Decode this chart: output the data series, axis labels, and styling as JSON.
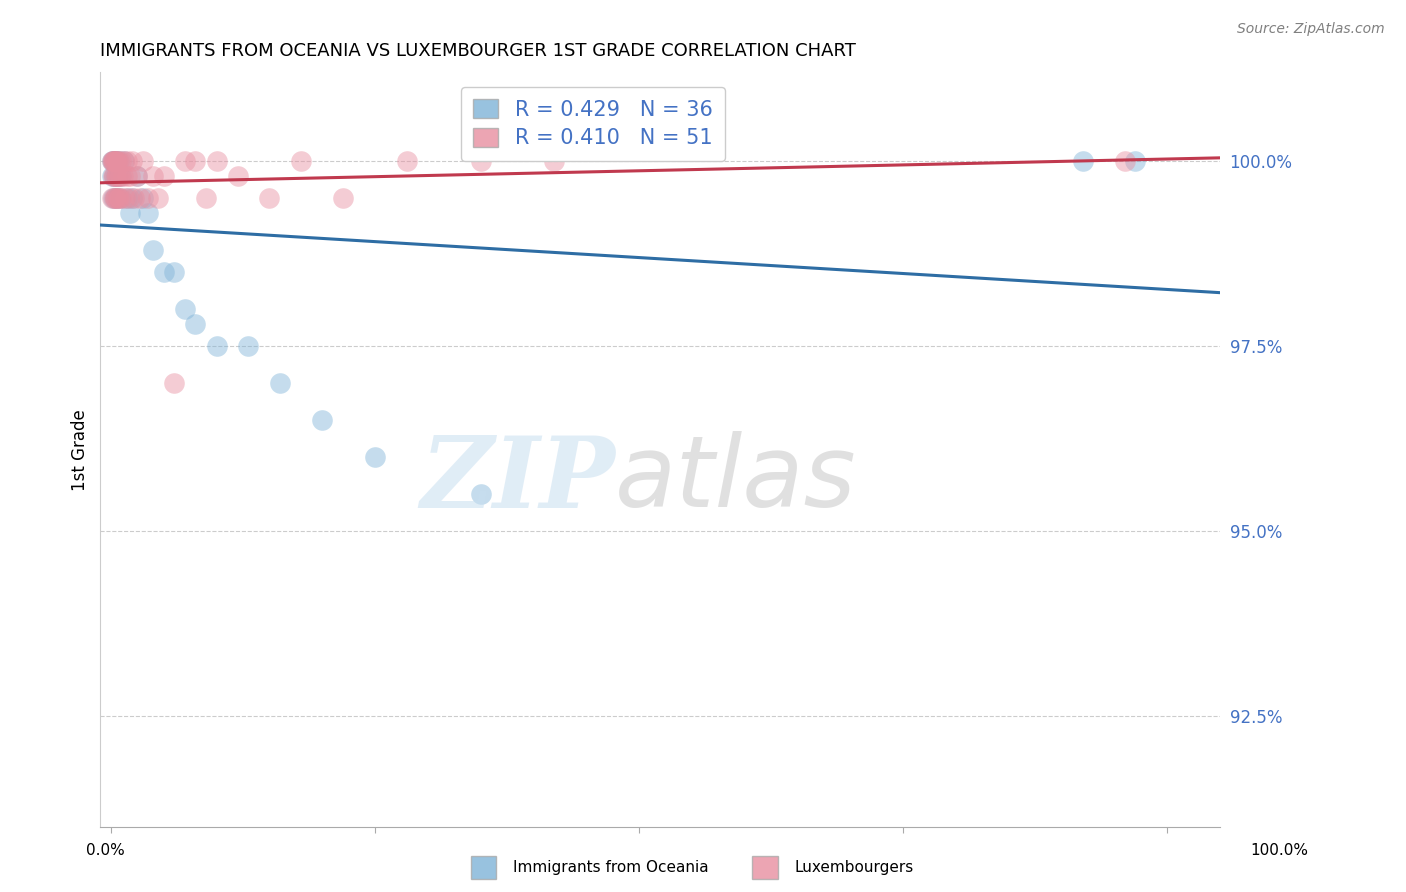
{
  "title": "IMMIGRANTS FROM OCEANIA VS LUXEMBOURGER 1ST GRADE CORRELATION CHART",
  "source_text": "Source: ZipAtlas.com",
  "ylabel": "1st Grade",
  "legend_blue_label": "Immigrants from Oceania",
  "legend_pink_label": "Luxembourgers",
  "R_blue": 0.429,
  "N_blue": 36,
  "R_pink": 0.41,
  "N_pink": 51,
  "blue_color": "#7fb3d8",
  "pink_color": "#e88fa0",
  "blue_line_color": "#2e6da4",
  "pink_line_color": "#c0394e",
  "ytick_labels": [
    "92.5%",
    "95.0%",
    "97.5%",
    "100.0%"
  ],
  "ytick_values": [
    92.5,
    95.0,
    97.5,
    100.0
  ],
  "ylim": [
    91.0,
    101.2
  ],
  "xlim": [
    -0.01,
    1.05
  ],
  "blue_points_x": [
    0.001,
    0.001,
    0.002,
    0.002,
    0.003,
    0.003,
    0.004,
    0.004,
    0.005,
    0.005,
    0.006,
    0.006,
    0.007,
    0.008,
    0.009,
    0.01,
    0.012,
    0.015,
    0.018,
    0.02,
    0.025,
    0.03,
    0.035,
    0.04,
    0.05,
    0.06,
    0.07,
    0.08,
    0.1,
    0.13,
    0.16,
    0.2,
    0.25,
    0.35,
    0.92,
    0.97
  ],
  "blue_points_y": [
    99.8,
    100.0,
    99.5,
    100.0,
    100.0,
    99.8,
    100.0,
    99.5,
    100.0,
    99.8,
    99.5,
    100.0,
    99.8,
    100.0,
    99.5,
    99.8,
    100.0,
    99.5,
    99.3,
    99.5,
    99.8,
    99.5,
    99.3,
    98.8,
    98.5,
    98.5,
    98.0,
    97.8,
    97.5,
    97.5,
    97.0,
    96.5,
    96.0,
    95.5,
    100.0,
    100.0
  ],
  "pink_points_x": [
    0.001,
    0.001,
    0.002,
    0.002,
    0.002,
    0.003,
    0.003,
    0.003,
    0.004,
    0.004,
    0.005,
    0.005,
    0.005,
    0.006,
    0.006,
    0.007,
    0.007,
    0.008,
    0.008,
    0.009,
    0.01,
    0.01,
    0.011,
    0.012,
    0.013,
    0.015,
    0.015,
    0.017,
    0.018,
    0.02,
    0.022,
    0.025,
    0.028,
    0.03,
    0.035,
    0.04,
    0.045,
    0.05,
    0.06,
    0.07,
    0.08,
    0.09,
    0.1,
    0.12,
    0.15,
    0.18,
    0.22,
    0.28,
    0.35,
    0.42,
    0.96
  ],
  "pink_points_y": [
    99.5,
    100.0,
    99.8,
    100.0,
    100.0,
    99.5,
    100.0,
    99.8,
    100.0,
    99.5,
    99.8,
    100.0,
    99.5,
    99.8,
    100.0,
    99.5,
    100.0,
    99.8,
    99.5,
    99.8,
    100.0,
    99.5,
    99.8,
    100.0,
    99.5,
    99.8,
    100.0,
    99.5,
    99.8,
    100.0,
    99.5,
    99.8,
    99.5,
    100.0,
    99.5,
    99.8,
    99.5,
    99.8,
    97.0,
    100.0,
    100.0,
    99.5,
    100.0,
    99.8,
    99.5,
    100.0,
    99.5,
    100.0,
    100.0,
    100.0,
    100.0
  ]
}
